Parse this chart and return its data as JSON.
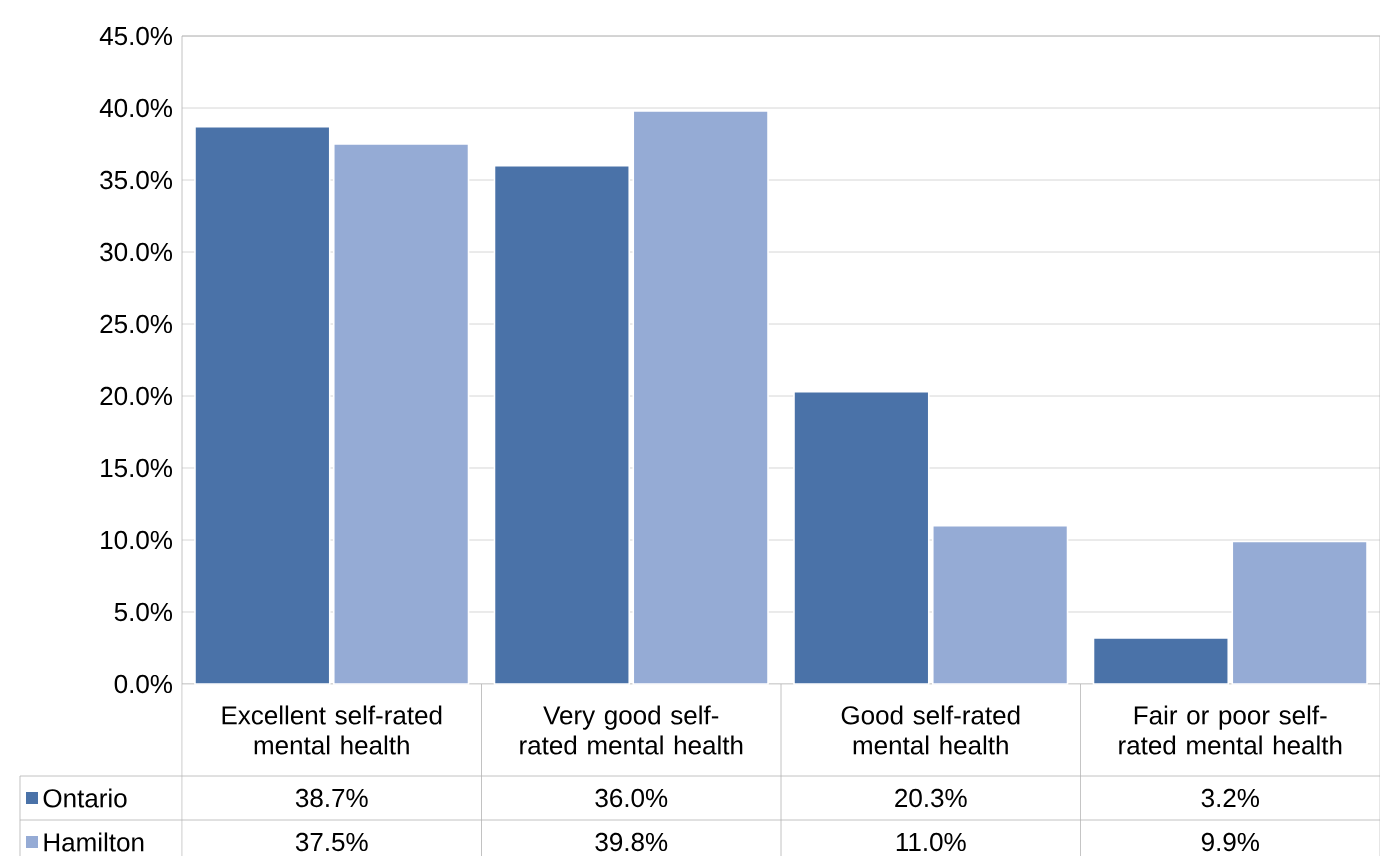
{
  "chart_data": {
    "type": "bar",
    "categories": [
      "Excellent self-rated mental health",
      "Very good self-rated mental health",
      "Good self-rated mental health",
      "Fair or poor self-rated mental health"
    ],
    "series": [
      {
        "name": "Ontario",
        "color": "#4a72a8",
        "values": [
          38.7,
          36.0,
          20.3,
          3.2
        ],
        "value_labels": [
          "38.7%",
          "36.0%",
          "20.3%",
          "3.2%"
        ]
      },
      {
        "name": "Hamilton",
        "color": "#95abd5",
        "values": [
          37.5,
          39.8,
          11.0,
          9.9
        ],
        "value_labels": [
          "37.5%",
          "39.8%",
          "11.0%",
          "9.9%"
        ]
      }
    ],
    "ylim": [
      0,
      45
    ],
    "yticks": [
      {
        "value": 0,
        "label": "0.0%"
      },
      {
        "value": 5,
        "label": "5.0%"
      },
      {
        "value": 10,
        "label": "10.0%"
      },
      {
        "value": 15,
        "label": "15.0%"
      },
      {
        "value": 20,
        "label": "20.0%"
      },
      {
        "value": 25,
        "label": "25.0%"
      },
      {
        "value": 30,
        "label": "30.0%"
      },
      {
        "value": 35,
        "label": "35.0%"
      },
      {
        "value": 40,
        "label": "40.0%"
      },
      {
        "value": 45,
        "label": "45.0%"
      }
    ],
    "grid": "y",
    "legend": "bottom left"
  }
}
